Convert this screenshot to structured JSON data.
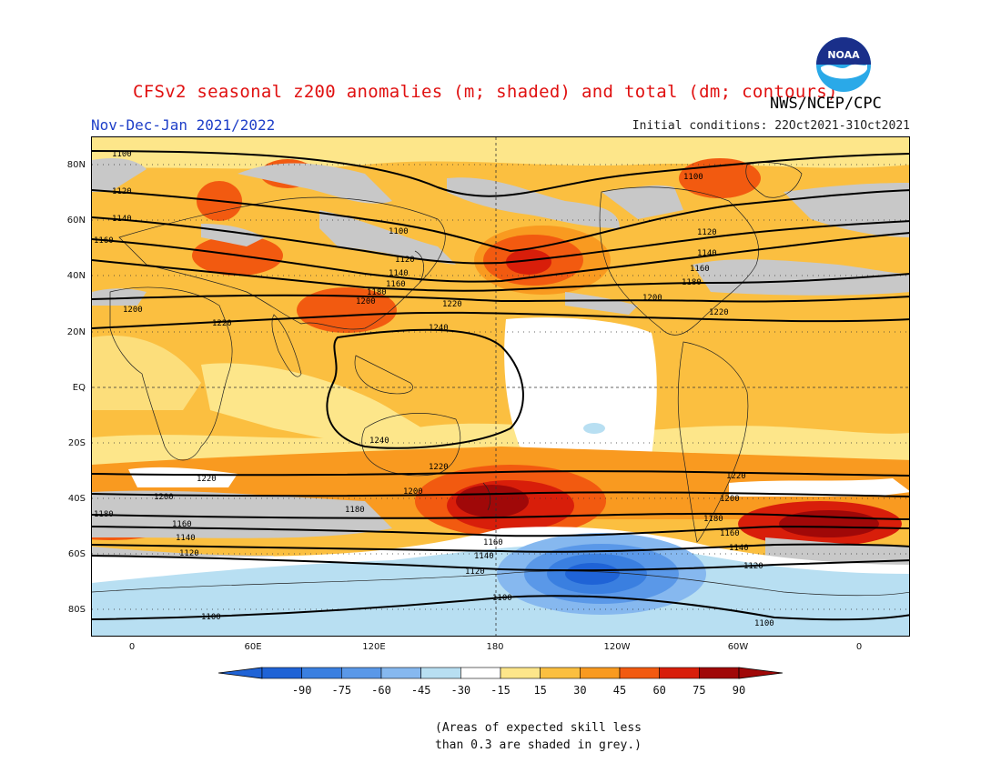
{
  "header": {
    "title": "CFSv2 seasonal z200 anomalies (m; shaded) and total (dm; contours)",
    "agency": "NWS/NCEP/CPC",
    "period": "Nov-Dec-Jan 2021/2022",
    "initial_conditions": "Initial conditions: 22Oct2021-31Oct2021",
    "logo_text": "NOAA"
  },
  "map": {
    "lat_labels": [
      "80N",
      "60N",
      "40N",
      "20N",
      "EQ",
      "20S",
      "40S",
      "60S",
      "80S"
    ],
    "lon_labels": [
      "0",
      "60E",
      "120E",
      "180",
      "120W",
      "60W",
      "0"
    ],
    "contour_labels": [
      "1100",
      "1120",
      "1140",
      "1160",
      "1180",
      "1200",
      "1220",
      "1240"
    ]
  },
  "colorbar": {
    "ticks": [
      "-90",
      "-75",
      "-60",
      "-45",
      "-30",
      "-15",
      "15",
      "30",
      "45",
      "60",
      "75",
      "90"
    ],
    "colors": [
      "#1f63d6",
      "#3a7fe0",
      "#5a98e8",
      "#86b8ef",
      "#b8dff2",
      "#ffffff",
      "#fde68a",
      "#fbbf40",
      "#f99a20",
      "#f25a10",
      "#d81e0a",
      "#a00808"
    ]
  },
  "footnote": {
    "line1": "(Areas of expected skill less",
    "line2": "than 0.3 are shaded in grey.)"
  }
}
